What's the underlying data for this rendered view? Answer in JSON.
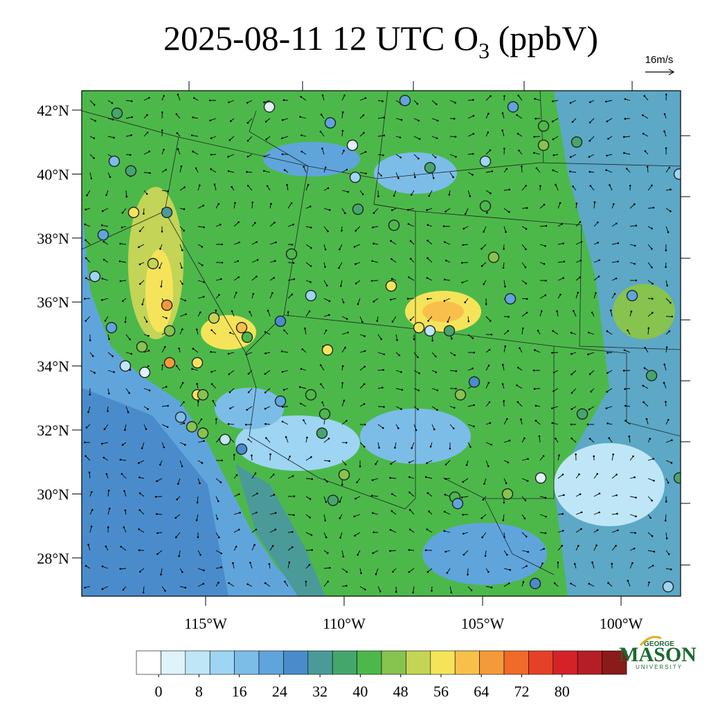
{
  "title": {
    "main": "2025-08-11 12 UTC O",
    "sub": "3",
    "rest": " (ppbV)"
  },
  "wind_reference": "16m/s",
  "lat_ticks": [
    {
      "value": 42,
      "label": "42°N"
    },
    {
      "value": 40,
      "label": "40°N"
    },
    {
      "value": 38,
      "label": "38°N"
    },
    {
      "value": 36,
      "label": "36°N"
    },
    {
      "value": 34,
      "label": "34°N"
    },
    {
      "value": 32,
      "label": "32°N"
    },
    {
      "value": 30,
      "label": "30°N"
    },
    {
      "value": 28,
      "label": "28°N"
    }
  ],
  "lon_ticks": [
    {
      "value": -115,
      "label": "115°W"
    },
    {
      "value": -110,
      "label": "110°W"
    },
    {
      "value": -105,
      "label": "105°W"
    },
    {
      "value": -100,
      "label": "100°W"
    }
  ],
  "colorbar": {
    "clim": [
      -4.4,
      92.8
    ],
    "ticks": [
      0,
      8,
      16,
      24,
      32,
      40,
      48,
      56,
      64,
      72,
      80
    ],
    "colors": [
      "#ffffff",
      "#dff3fb",
      "#bfe6f6",
      "#9dd5f3",
      "#7cbde8",
      "#5fa5dc",
      "#4a8ccb",
      "#4b9a9a",
      "#45a66b",
      "#4cb84a",
      "#86c34f",
      "#c3d456",
      "#f5e45a",
      "#f8c04a",
      "#f59a3a",
      "#f06a2a",
      "#e54128",
      "#d42228",
      "#b51e24",
      "#8b1a1a"
    ]
  },
  "logo": {
    "top": "GEORGE",
    "name": "MASON",
    "bottom": "UNIVERSITY"
  },
  "stations": [
    {
      "lon": -118.2,
      "lat": 41.9,
      "value": 36
    },
    {
      "lon": -118.3,
      "lat": 40.4,
      "value": 18
    },
    {
      "lon": -117.7,
      "lat": 40.1,
      "value": 36
    },
    {
      "lon": -117.6,
      "lat": 38.8,
      "value": 56
    },
    {
      "lon": -116.4,
      "lat": 38.8,
      "value": 34
    },
    {
      "lon": -116.9,
      "lat": 37.2,
      "value": 52
    },
    {
      "lon": -116.4,
      "lat": 35.9,
      "value": 66
    },
    {
      "lon": -116.3,
      "lat": 34.1,
      "value": 68
    },
    {
      "lon": -115.3,
      "lat": 34.1,
      "value": 58
    },
    {
      "lon": -114.7,
      "lat": 35.5,
      "value": 52
    },
    {
      "lon": -113.7,
      "lat": 35.2,
      "value": 62
    },
    {
      "lon": -113.5,
      "lat": 34.9,
      "value": 44
    },
    {
      "lon": -116.3,
      "lat": 35.1,
      "value": 46
    },
    {
      "lon": -117.3,
      "lat": 34.6,
      "value": 48
    },
    {
      "lon": -115.3,
      "lat": 33.1,
      "value": 54
    },
    {
      "lon": -115.1,
      "lat": 33.1,
      "value": 48
    },
    {
      "lon": -115.5,
      "lat": 32.1,
      "value": 48
    },
    {
      "lon": -115.1,
      "lat": 31.9,
      "value": 48
    },
    {
      "lon": -115.9,
      "lat": 32.4,
      "value": 16
    },
    {
      "lon": -117.2,
      "lat": 33.8,
      "value": 4
    },
    {
      "lon": -117.9,
      "lat": 34.0,
      "value": 10
    },
    {
      "lon": -118.4,
      "lat": 35.2,
      "value": 22
    },
    {
      "lon": -118.7,
      "lat": 38.1,
      "value": 20
    },
    {
      "lon": -119.0,
      "lat": 36.8,
      "value": 14
    },
    {
      "lon": -112.7,
      "lat": 42.1,
      "value": 2
    },
    {
      "lon": -110.5,
      "lat": 41.6,
      "value": 22
    },
    {
      "lon": -109.7,
      "lat": 40.9,
      "value": 4
    },
    {
      "lon": -109.6,
      "lat": 39.9,
      "value": 14
    },
    {
      "lon": -109.5,
      "lat": 38.9,
      "value": 36
    },
    {
      "lon": -110.6,
      "lat": 34.5,
      "value": 56
    },
    {
      "lon": -111.2,
      "lat": 36.2,
      "value": 12
    },
    {
      "lon": -111.9,
      "lat": 37.5,
      "value": 42
    },
    {
      "lon": -107.8,
      "lat": 42.3,
      "value": 20
    },
    {
      "lon": -106.9,
      "lat": 40.2,
      "value": 38
    },
    {
      "lon": -108.2,
      "lat": 38.4,
      "value": 42
    },
    {
      "lon": -108.3,
      "lat": 36.5,
      "value": 54
    },
    {
      "lon": -107.3,
      "lat": 35.2,
      "value": 56
    },
    {
      "lon": -106.9,
      "lat": 35.1,
      "value": 6
    },
    {
      "lon": -106.2,
      "lat": 35.1,
      "value": 36
    },
    {
      "lon": -104.9,
      "lat": 40.4,
      "value": 12
    },
    {
      "lon": -103.9,
      "lat": 42.1,
      "value": 22
    },
    {
      "lon": -102.8,
      "lat": 41.5,
      "value": 42
    },
    {
      "lon": -102.8,
      "lat": 40.9,
      "value": 46
    },
    {
      "lon": -101.6,
      "lat": 41.0,
      "value": 36
    },
    {
      "lon": -104.9,
      "lat": 39.0,
      "value": 42
    },
    {
      "lon": -104.6,
      "lat": 37.4,
      "value": 46
    },
    {
      "lon": -104.0,
      "lat": 36.1,
      "value": 20
    },
    {
      "lon": -99.6,
      "lat": 36.2,
      "value": 22
    },
    {
      "lon": -98.9,
      "lat": 33.7,
      "value": 36
    },
    {
      "lon": -101.4,
      "lat": 32.5,
      "value": 36
    },
    {
      "lon": -102.9,
      "lat": 30.5,
      "value": 4
    },
    {
      "lon": -104.1,
      "lat": 30.0,
      "value": 46
    },
    {
      "lon": -106.0,
      "lat": 29.9,
      "value": 40
    },
    {
      "lon": -105.9,
      "lat": 29.7,
      "value": 22
    },
    {
      "lon": -110.4,
      "lat": 29.8,
      "value": 36
    },
    {
      "lon": -110.0,
      "lat": 30.6,
      "value": 46
    },
    {
      "lon": -110.8,
      "lat": 31.9,
      "value": 36
    },
    {
      "lon": -110.7,
      "lat": 32.5,
      "value": 42
    },
    {
      "lon": -111.2,
      "lat": 33.1,
      "value": 44
    },
    {
      "lon": -112.3,
      "lat": 32.9,
      "value": 20
    },
    {
      "lon": -114.3,
      "lat": 31.7,
      "value": 6
    },
    {
      "lon": -113.7,
      "lat": 31.4,
      "value": 28
    },
    {
      "lon": -105.8,
      "lat": 33.1,
      "value": 46
    },
    {
      "lon": -105.3,
      "lat": 33.5,
      "value": 28
    },
    {
      "lon": -103.1,
      "lat": 27.2,
      "value": 28
    },
    {
      "lon": -98.3,
      "lat": 27.1,
      "value": 14
    },
    {
      "lon": -97.9,
      "lat": 30.5,
      "value": 36
    },
    {
      "lon": -97.9,
      "lat": 40.0,
      "value": 14
    },
    {
      "lon": -112.3,
      "lat": 35.4,
      "value": 28
    }
  ]
}
